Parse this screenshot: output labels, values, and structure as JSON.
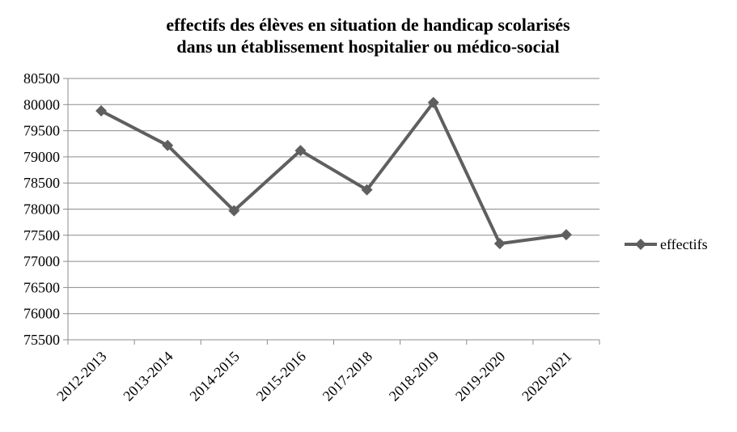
{
  "chart_data": {
    "type": "line",
    "title_lines": [
      "effectifs des élèves en situation de handicap scolarisés",
      "dans un établissement hospitalier ou médico-social"
    ],
    "categories": [
      "2012-2013",
      "2013-2014",
      "2014-2015",
      "2015-2016",
      "2017-2018",
      "2018-2019",
      "2019-2020",
      "2020-2021"
    ],
    "series": [
      {
        "name": "effectifs",
        "values": [
          79880,
          79220,
          77970,
          79120,
          78370,
          80040,
          77340,
          77510
        ]
      }
    ],
    "ylim": [
      75500,
      80500
    ],
    "yticks": [
      75500,
      76000,
      76500,
      77000,
      77500,
      78000,
      78500,
      79000,
      79500,
      80000,
      80500
    ],
    "ytick_labels": [
      "75500",
      "76000",
      "76500",
      "77000",
      "77500",
      "78000",
      "78500",
      "79000",
      "79500",
      "80000",
      "80500"
    ],
    "xlabel": "",
    "ylabel": "",
    "grid": true,
    "legend_position": "right",
    "colors": {
      "series": "#5f5f5f",
      "grid": "#8c8c8c",
      "axis": "#8c8c8c"
    }
  }
}
